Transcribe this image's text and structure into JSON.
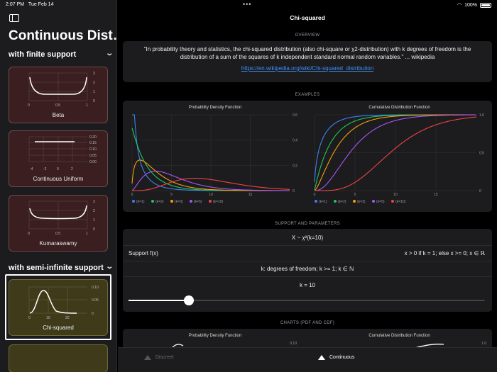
{
  "status": {
    "time": "2:07 PM",
    "date": "Tue Feb 14",
    "battery": "100%"
  },
  "sidebar": {
    "title": "Continuous Dist…",
    "sections": [
      {
        "label": "with finite support"
      },
      {
        "label": "with semi-infinite support"
      }
    ],
    "cards": [
      {
        "name": "Beta",
        "y_ticks": [
          "3",
          "2",
          "1",
          "0"
        ],
        "x_ticks": [
          "0",
          "0.5",
          "1"
        ]
      },
      {
        "name": "Continuous Uniform",
        "y_ticks": [
          "0.20",
          "0.15",
          "0.10",
          "0.05",
          "0.00"
        ],
        "x_ticks": [
          "-4",
          "-2",
          "0",
          "2"
        ]
      },
      {
        "name": "Kumaraswamy",
        "y_ticks": [
          "3",
          "2",
          "1",
          "0"
        ],
        "x_ticks": [
          "0",
          "0.5",
          "1"
        ]
      },
      {
        "name": "Chi-squared",
        "y_ticks": [
          "0.10",
          "0.05",
          "0"
        ],
        "x_ticks": [
          "0",
          "10",
          "20"
        ]
      }
    ]
  },
  "main": {
    "title": "Chi-squared",
    "overview_label": "OVERVIEW",
    "quote": "\"In probability theory and statistics, the chi-squared distribution (also chi-square or χ2-distribution) with k degrees of freedom is the distribution of a sum of the squares of k independent standard normal random variables.\" ... wikipedia",
    "link": "https://en.wikipedia.org/wiki/Chi-squared_distribution",
    "examples_label": "EXAMPLES",
    "support_label": "SUPPORT AND PARAMETERS",
    "charts_label": "CHARTS (PDF AND CDF)",
    "notation": "X ~ χ²(k=10)",
    "support_key": "Support f(x)",
    "support_value": "x > 0 if k = 1; else x >= 0; x ∈ ℝ",
    "param_desc": "k: degrees of freedom; k >= 1; k ∈ ℕ",
    "k_label": "k = 10",
    "slider_value": 0.17
  },
  "tabbar": {
    "tabs": [
      {
        "label": "Discreet"
      },
      {
        "label": "Continuous"
      }
    ]
  },
  "chart_data": [
    {
      "type": "line",
      "title": "Probability Density Function",
      "x_ticks": [
        "0",
        "5",
        "10",
        "15"
      ],
      "y_ticks": [
        "0.6",
        "0.4",
        "0.2",
        "0"
      ],
      "xlim": [
        0,
        20
      ],
      "ylim": [
        0,
        0.6
      ],
      "series": [
        {
          "name": "(k=1)",
          "color": "#3b82f6",
          "k": 1
        },
        {
          "name": "(k=2)",
          "color": "#22c55e",
          "k": 2
        },
        {
          "name": "(k=3)",
          "color": "#f59e0b",
          "k": 3
        },
        {
          "name": "(k=5)",
          "color": "#a855f7",
          "k": 5
        },
        {
          "name": "(k=10)",
          "color": "#ef4444",
          "k": 10
        }
      ]
    },
    {
      "type": "line",
      "title": "Cumulative Distribution Function",
      "x_ticks": [
        "0",
        "5",
        "10",
        "15"
      ],
      "y_ticks": [
        "1.0",
        "0.5",
        "0"
      ],
      "xlim": [
        0,
        20
      ],
      "ylim": [
        0,
        1
      ],
      "series": [
        {
          "name": "(k=1)",
          "color": "#3b82f6",
          "k": 1
        },
        {
          "name": "(k=2)",
          "color": "#22c55e",
          "k": 2
        },
        {
          "name": "(k=3)",
          "color": "#f59e0b",
          "k": 3
        },
        {
          "name": "(k=5)",
          "color": "#a855f7",
          "k": 5
        },
        {
          "name": "(k=10)",
          "color": "#ef4444",
          "k": 10
        }
      ]
    },
    {
      "type": "line",
      "title": "Probability Density Function",
      "y_ticks": [
        "0.10"
      ]
    },
    {
      "type": "line",
      "title": "Cumulative Distribution Function",
      "y_ticks": [
        "1.0"
      ]
    }
  ]
}
